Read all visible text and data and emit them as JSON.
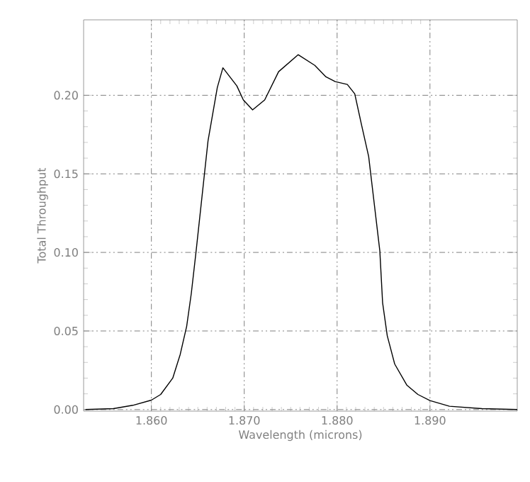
{
  "chart_data": {
    "type": "line",
    "xlabel": "Wavelength (microns)",
    "ylabel": "Total Throughput",
    "grid": true,
    "line_style": "solid",
    "xlim": [
      1.8527,
      1.8994
    ],
    "ylim": [
      -0.001,
      0.248
    ],
    "xticks": [
      {
        "value": 1.86,
        "label": "1.860"
      },
      {
        "value": 1.87,
        "label": "1.870"
      },
      {
        "value": 1.88,
        "label": "1.880"
      },
      {
        "value": 1.89,
        "label": "1.890"
      }
    ],
    "yticks": [
      {
        "value": 0,
        "label": "0.00"
      },
      {
        "value": 0.05,
        "label": "0.05"
      },
      {
        "value": 0.1,
        "label": "0.10"
      },
      {
        "value": 0.15,
        "label": "0.15"
      },
      {
        "value": 0.2,
        "label": "0.20"
      }
    ],
    "series": [
      {
        "color": "#000000",
        "x": [
          1.8529,
          1.8559,
          1.858,
          1.86,
          1.861,
          1.8623,
          1.8631,
          1.8638,
          1.8643,
          1.8648,
          1.8661,
          1.8671,
          1.8677,
          1.8692,
          1.8699,
          1.8709,
          1.8722,
          1.8737,
          1.8758,
          1.8776,
          1.8788,
          1.8798,
          1.8811,
          1.8819,
          1.8826,
          1.8834,
          1.8846,
          1.8849,
          1.8854,
          1.8862,
          1.8875,
          1.8887,
          1.89,
          1.8921,
          1.8956,
          1.8994
        ],
        "values": [
          0.0,
          0.0006,
          0.0027,
          0.006,
          0.0096,
          0.02,
          0.035,
          0.053,
          0.074,
          0.1,
          0.171,
          0.205,
          0.2175,
          0.206,
          0.197,
          0.1907,
          0.197,
          0.215,
          0.2258,
          0.219,
          0.2117,
          0.2087,
          0.2069,
          0.2009,
          0.182,
          0.161,
          0.101,
          0.068,
          0.047,
          0.029,
          0.0156,
          0.0096,
          0.0057,
          0.0021,
          0.0006,
          0.0
        ]
      }
    ]
  }
}
